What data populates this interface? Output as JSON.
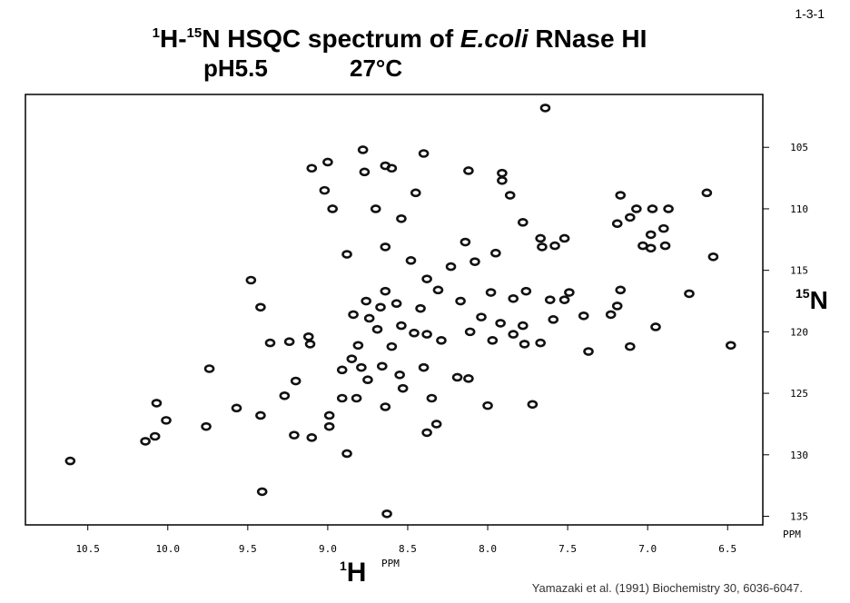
{
  "chart_data": {
    "type": "scatter",
    "page_number": "1-3-1",
    "title_parts": [
      {
        "text": "1",
        "sup": true
      },
      {
        "text": "H-"
      },
      {
        "text": "15",
        "sup": true
      },
      {
        "text": "N HSQC spectrum of "
      },
      {
        "text": "E.coli",
        "italic": true
      },
      {
        "text": " RNase HI"
      }
    ],
    "subtitle_left": "pH5.5",
    "subtitle_right": "27°C",
    "x_label_sup": "1",
    "x_label": "H",
    "y_label_sup": "15",
    "y_label": "N",
    "x_unit": "PPM",
    "y_unit": "PPM",
    "citation": "Yamazaki et al. (1991) Biochemistry 30, 6036-6047.",
    "color": "#111111",
    "xlim": [
      10.89,
      6.28
    ],
    "ylim": [
      100.7,
      135.7
    ],
    "xticks": [
      10.5,
      {
        "value": 10,
        "label": "10.0"
      },
      9.5,
      {
        "value": 9,
        "label": "9.0"
      },
      8.5,
      {
        "value": 8,
        "label": "8.0"
      },
      7.5,
      {
        "value": 7,
        "label": "7.0"
      },
      6.5
    ],
    "yticks": [
      105,
      110,
      115,
      120,
      125,
      130,
      135
    ],
    "x": [
      7.64,
      8.78,
      8.4,
      9.1,
      9.0,
      8.77,
      8.64,
      8.6,
      8.12,
      7.91,
      7.91,
      9.02,
      8.45,
      7.86,
      8.97,
      8.7,
      8.54,
      8.64,
      8.14,
      7.95,
      8.88,
      9.48,
      8.48,
      8.23,
      8.08,
      8.38,
      8.64,
      8.31,
      7.98,
      7.76,
      7.49,
      7.17,
      6.74,
      9.42,
      8.76,
      8.84,
      8.67,
      8.57,
      8.42,
      8.17,
      8.04,
      7.84,
      7.61,
      7.52,
      7.4,
      7.23,
      7.19,
      6.95,
      7.59,
      7.92,
      7.78,
      8.74,
      8.69,
      8.54,
      8.46,
      8.38,
      8.29,
      8.11,
      7.97,
      7.84,
      7.77,
      7.67,
      7.37,
      7.11,
      6.48,
      6.59,
      9.36,
      9.24,
      9.12,
      9.11,
      8.81,
      8.6,
      8.85,
      8.91,
      8.79,
      8.75,
      8.66,
      8.55,
      8.4,
      8.19,
      8.12,
      9.74,
      9.2,
      8.53,
      8.91,
      8.82,
      8.35,
      8.0,
      7.72,
      8.64,
      9.27,
      9.57,
      9.42,
      10.07,
      10.01,
      9.76,
      10.08,
      10.14,
      9.1,
      9.21,
      8.99,
      8.99,
      8.32,
      8.38,
      8.88,
      10.61,
      9.41,
      8.63,
      7.78,
      7.67,
      7.58,
      7.52,
      7.66,
      7.19,
      7.17,
      7.07,
      6.97,
      6.87,
      7.11,
      6.98,
      6.9,
      7.03,
      6.98,
      6.89,
      6.63
    ],
    "values": [
      101.8,
      105.2,
      105.5,
      106.7,
      106.2,
      107.0,
      106.5,
      106.7,
      106.9,
      107.1,
      107.7,
      108.5,
      108.7,
      108.9,
      110.0,
      110.0,
      110.8,
      113.1,
      112.7,
      113.6,
      113.7,
      115.8,
      114.2,
      114.7,
      114.3,
      115.7,
      116.7,
      116.6,
      116.8,
      116.7,
      116.8,
      116.6,
      116.9,
      118.0,
      117.5,
      118.6,
      118.0,
      117.7,
      118.1,
      117.5,
      118.8,
      117.3,
      117.4,
      117.4,
      118.7,
      118.6,
      117.9,
      119.6,
      119.0,
      119.3,
      119.5,
      118.9,
      119.8,
      119.5,
      120.1,
      120.2,
      120.7,
      120.0,
      120.7,
      120.2,
      121.0,
      120.9,
      121.6,
      121.2,
      121.1,
      113.9,
      120.9,
      120.8,
      120.4,
      121.0,
      121.1,
      121.2,
      122.2,
      123.1,
      122.9,
      123.9,
      122.8,
      123.5,
      122.9,
      123.7,
      123.8,
      123.0,
      124.0,
      124.6,
      125.4,
      125.4,
      125.4,
      126.0,
      125.9,
      126.1,
      125.2,
      126.2,
      126.8,
      125.8,
      127.2,
      127.7,
      128.5,
      128.9,
      128.6,
      128.4,
      126.8,
      127.7,
      127.5,
      128.2,
      129.9,
      130.5,
      133.0,
      134.8,
      111.1,
      112.4,
      113.0,
      112.4,
      113.1,
      111.2,
      108.9,
      110.0,
      110.0,
      110.0,
      110.7,
      112.1,
      111.6,
      113.0,
      113.2,
      113.0,
      108.7
    ]
  }
}
